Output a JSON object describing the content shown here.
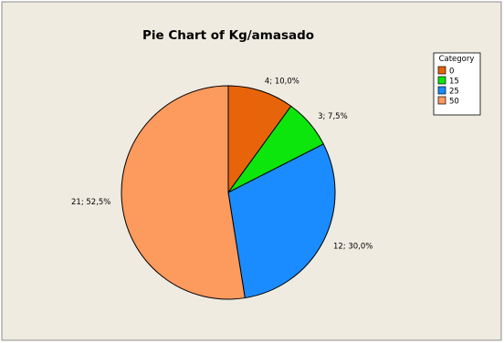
{
  "chart_data": {
    "type": "pie",
    "title": "Pie Chart of Kg/amasado",
    "legend": {
      "title": "Category",
      "placement": "top-right"
    },
    "slices": [
      {
        "category": "0",
        "count": 4,
        "percent": 10.0,
        "label": "4; 10,0%",
        "color": "#e8640a"
      },
      {
        "category": "15",
        "count": 3,
        "percent": 7.5,
        "label": "3; 7,5%",
        "color": "#0de60d"
      },
      {
        "category": "25",
        "count": 12,
        "percent": 30.0,
        "label": "12; 30,0%",
        "color": "#1a8cff"
      },
      {
        "category": "50",
        "count": 21,
        "percent": 52.5,
        "label": "21; 52,5%",
        "color": "#fd9a5e"
      }
    ]
  },
  "colors": {
    "panel_background": "#efebe1",
    "border": "#8e8e8e"
  }
}
